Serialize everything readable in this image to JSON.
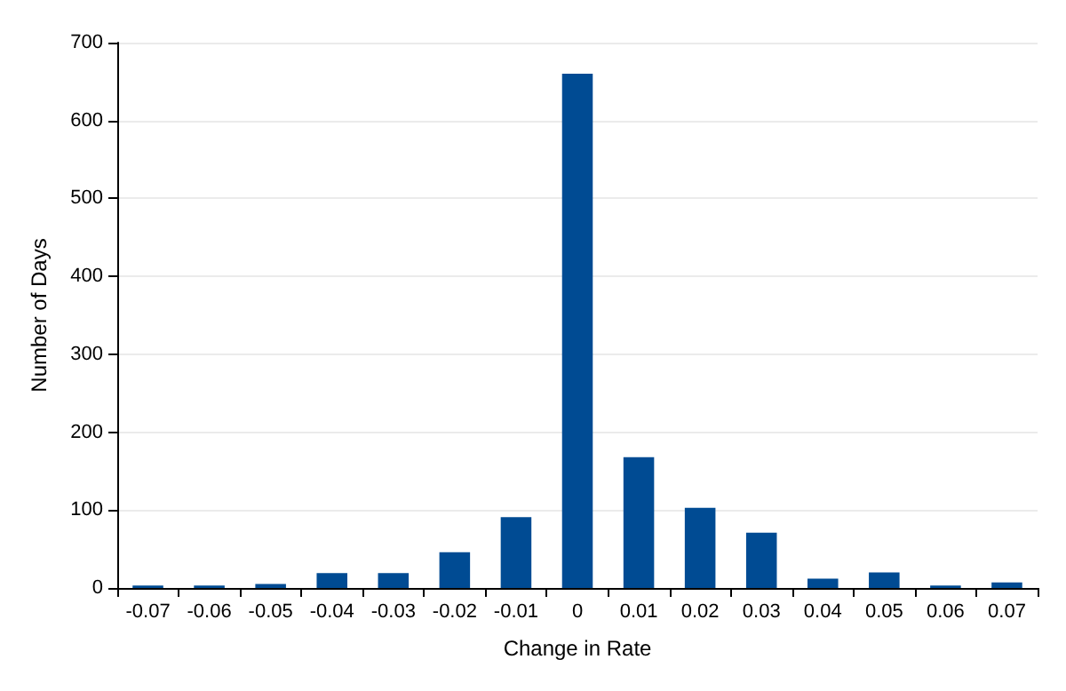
{
  "chart_data": {
    "type": "bar",
    "xlabel": "Change in Rate",
    "ylabel": "Number of Days",
    "categories": [
      "-0.07",
      "-0.06",
      "-0.05",
      "-0.04",
      "-0.03",
      "-0.02",
      "-0.01",
      "0",
      "0.01",
      "0.02",
      "0.03",
      "0.04",
      "0.05",
      "0.06",
      "0.07"
    ],
    "values": [
      3,
      3,
      5,
      19,
      19,
      46,
      91,
      660,
      168,
      103,
      71,
      12,
      20,
      3,
      7
    ],
    "color": "#004b93",
    "ylim": [
      0,
      700
    ],
    "yticks": [
      0,
      100,
      200,
      300,
      400,
      500,
      600,
      700
    ],
    "grid": "y"
  }
}
